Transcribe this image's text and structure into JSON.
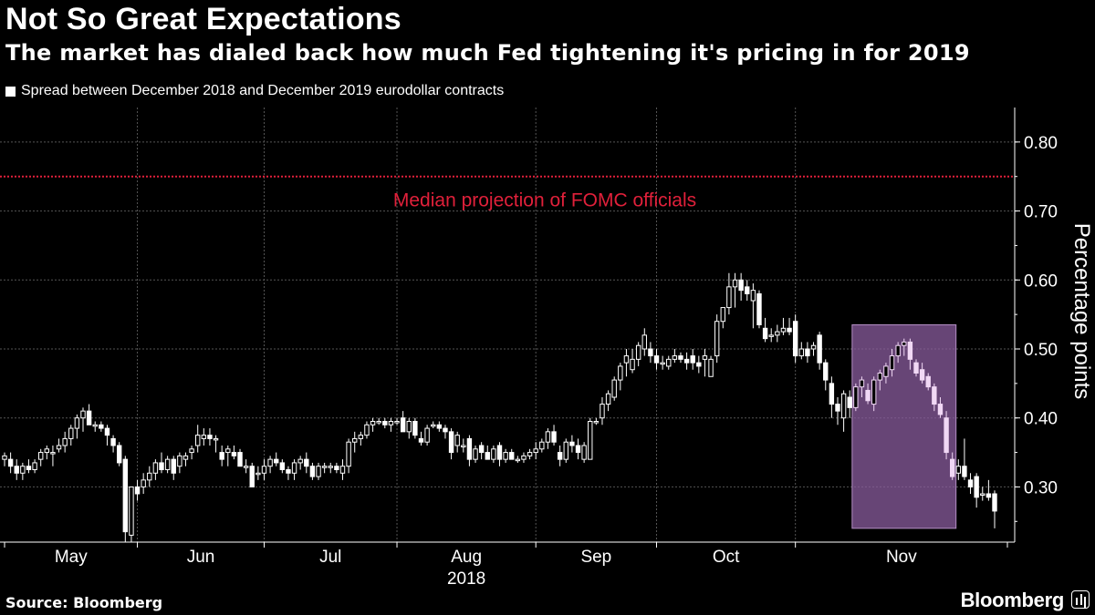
{
  "title": "Not So Great Expectations",
  "subtitle": "The market has dialed back how much Fed tightening it's pricing in for 2019",
  "legend_label": "Spread between December 2018 and December 2019 eurodollar contracts",
  "source": "Source: Bloomberg",
  "brand": "Bloomberg",
  "colors": {
    "background": "#000000",
    "candle": "#ffffff",
    "reference_line": "#e0203a",
    "highlight": "#8a5c9e",
    "highlight_candle": "#f1d8f5"
  },
  "chart_data": {
    "type": "candlestick",
    "title": "Not So Great Expectations",
    "ylabel": "Percentage points",
    "ylim": [
      0.22,
      0.85
    ],
    "yticks": [
      0.3,
      0.4,
      0.5,
      0.6,
      0.7,
      0.8
    ],
    "ytick_labels": [
      "0.30",
      "0.40",
      "0.50",
      "0.60",
      "0.70",
      "0.80"
    ],
    "xlim": [
      0,
      164
    ],
    "x_months": [
      {
        "label": "May",
        "day": 0
      },
      {
        "label": "Jun",
        "day": 22
      },
      {
        "label": "Jul",
        "day": 43
      },
      {
        "label": "Aug",
        "day": 65
      },
      {
        "label": "Sep",
        "day": 88
      },
      {
        "label": "Oct",
        "day": 108
      },
      {
        "label": "Nov",
        "day": 131
      }
    ],
    "x_year_label": "2018",
    "reference_line": {
      "value": 0.75,
      "label": "Median projection of FOMC officials"
    },
    "highlight": {
      "x_start": 141,
      "x_end": 157,
      "y_low": 0.24,
      "y_high": 0.535
    },
    "candles": [
      {
        "o": 0.34,
        "h": 0.35,
        "l": 0.33,
        "c": 0.345
      },
      {
        "o": 0.34,
        "h": 0.35,
        "l": 0.32,
        "c": 0.33
      },
      {
        "o": 0.33,
        "h": 0.34,
        "l": 0.31,
        "c": 0.32
      },
      {
        "o": 0.32,
        "h": 0.335,
        "l": 0.31,
        "c": 0.33
      },
      {
        "o": 0.33,
        "h": 0.34,
        "l": 0.32,
        "c": 0.325
      },
      {
        "o": 0.325,
        "h": 0.34,
        "l": 0.32,
        "c": 0.335
      },
      {
        "o": 0.34,
        "h": 0.355,
        "l": 0.33,
        "c": 0.35
      },
      {
        "o": 0.35,
        "h": 0.36,
        "l": 0.34,
        "c": 0.355
      },
      {
        "o": 0.35,
        "h": 0.36,
        "l": 0.33,
        "c": 0.35
      },
      {
        "o": 0.355,
        "h": 0.37,
        "l": 0.35,
        "c": 0.36
      },
      {
        "o": 0.36,
        "h": 0.38,
        "l": 0.35,
        "c": 0.37
      },
      {
        "o": 0.37,
        "h": 0.39,
        "l": 0.36,
        "c": 0.385
      },
      {
        "o": 0.385,
        "h": 0.405,
        "l": 0.37,
        "c": 0.4
      },
      {
        "o": 0.4,
        "h": 0.415,
        "l": 0.38,
        "c": 0.41
      },
      {
        "o": 0.41,
        "h": 0.42,
        "l": 0.39,
        "c": 0.39
      },
      {
        "o": 0.39,
        "h": 0.395,
        "l": 0.38,
        "c": 0.39
      },
      {
        "o": 0.39,
        "h": 0.395,
        "l": 0.38,
        "c": 0.385
      },
      {
        "o": 0.385,
        "h": 0.39,
        "l": 0.36,
        "c": 0.375
      },
      {
        "o": 0.37,
        "h": 0.375,
        "l": 0.35,
        "c": 0.36
      },
      {
        "o": 0.36,
        "h": 0.365,
        "l": 0.33,
        "c": 0.335
      },
      {
        "o": 0.34,
        "h": 0.345,
        "l": 0.22,
        "c": 0.235
      },
      {
        "o": 0.23,
        "h": 0.3,
        "l": 0.22,
        "c": 0.3
      },
      {
        "o": 0.3,
        "h": 0.31,
        "l": 0.28,
        "c": 0.29
      },
      {
        "o": 0.3,
        "h": 0.32,
        "l": 0.29,
        "c": 0.31
      },
      {
        "o": 0.31,
        "h": 0.33,
        "l": 0.3,
        "c": 0.32
      },
      {
        "o": 0.32,
        "h": 0.34,
        "l": 0.31,
        "c": 0.335
      },
      {
        "o": 0.335,
        "h": 0.35,
        "l": 0.32,
        "c": 0.325
      },
      {
        "o": 0.325,
        "h": 0.345,
        "l": 0.32,
        "c": 0.34
      },
      {
        "o": 0.34,
        "h": 0.345,
        "l": 0.31,
        "c": 0.32
      },
      {
        "o": 0.33,
        "h": 0.35,
        "l": 0.32,
        "c": 0.345
      },
      {
        "o": 0.34,
        "h": 0.35,
        "l": 0.33,
        "c": 0.345
      },
      {
        "o": 0.35,
        "h": 0.36,
        "l": 0.34,
        "c": 0.355
      },
      {
        "o": 0.36,
        "h": 0.39,
        "l": 0.35,
        "c": 0.375
      },
      {
        "o": 0.37,
        "h": 0.385,
        "l": 0.36,
        "c": 0.375
      },
      {
        "o": 0.375,
        "h": 0.385,
        "l": 0.36,
        "c": 0.37
      },
      {
        "o": 0.37,
        "h": 0.375,
        "l": 0.35,
        "c": 0.37
      },
      {
        "o": 0.35,
        "h": 0.36,
        "l": 0.33,
        "c": 0.34
      },
      {
        "o": 0.35,
        "h": 0.36,
        "l": 0.33,
        "c": 0.355
      },
      {
        "o": 0.35,
        "h": 0.36,
        "l": 0.34,
        "c": 0.345
      },
      {
        "o": 0.35,
        "h": 0.355,
        "l": 0.33,
        "c": 0.33
      },
      {
        "o": 0.33,
        "h": 0.34,
        "l": 0.32,
        "c": 0.33
      },
      {
        "o": 0.33,
        "h": 0.335,
        "l": 0.3,
        "c": 0.3
      },
      {
        "o": 0.32,
        "h": 0.33,
        "l": 0.31,
        "c": 0.32
      },
      {
        "o": 0.32,
        "h": 0.34,
        "l": 0.31,
        "c": 0.33
      },
      {
        "o": 0.33,
        "h": 0.345,
        "l": 0.32,
        "c": 0.34
      },
      {
        "o": 0.34,
        "h": 0.35,
        "l": 0.33,
        "c": 0.335
      },
      {
        "o": 0.335,
        "h": 0.34,
        "l": 0.32,
        "c": 0.325
      },
      {
        "o": 0.325,
        "h": 0.33,
        "l": 0.31,
        "c": 0.32
      },
      {
        "o": 0.32,
        "h": 0.34,
        "l": 0.31,
        "c": 0.335
      },
      {
        "o": 0.335,
        "h": 0.345,
        "l": 0.325,
        "c": 0.34
      },
      {
        "o": 0.34,
        "h": 0.35,
        "l": 0.32,
        "c": 0.33
      },
      {
        "o": 0.33,
        "h": 0.335,
        "l": 0.31,
        "c": 0.315
      },
      {
        "o": 0.315,
        "h": 0.335,
        "l": 0.31,
        "c": 0.33
      },
      {
        "o": 0.33,
        "h": 0.335,
        "l": 0.32,
        "c": 0.33
      },
      {
        "o": 0.33,
        "h": 0.335,
        "l": 0.32,
        "c": 0.33
      },
      {
        "o": 0.33,
        "h": 0.335,
        "l": 0.32,
        "c": 0.325
      },
      {
        "o": 0.32,
        "h": 0.34,
        "l": 0.31,
        "c": 0.33
      },
      {
        "o": 0.33,
        "h": 0.37,
        "l": 0.32,
        "c": 0.365
      },
      {
        "o": 0.365,
        "h": 0.38,
        "l": 0.35,
        "c": 0.37
      },
      {
        "o": 0.37,
        "h": 0.38,
        "l": 0.36,
        "c": 0.375
      },
      {
        "o": 0.375,
        "h": 0.395,
        "l": 0.37,
        "c": 0.39
      },
      {
        "o": 0.39,
        "h": 0.4,
        "l": 0.38,
        "c": 0.395
      },
      {
        "o": 0.395,
        "h": 0.4,
        "l": 0.39,
        "c": 0.395
      },
      {
        "o": 0.395,
        "h": 0.4,
        "l": 0.385,
        "c": 0.39
      },
      {
        "o": 0.39,
        "h": 0.4,
        "l": 0.38,
        "c": 0.395
      },
      {
        "o": 0.395,
        "h": 0.4,
        "l": 0.39,
        "c": 0.395
      },
      {
        "o": 0.4,
        "h": 0.41,
        "l": 0.38,
        "c": 0.38
      },
      {
        "o": 0.38,
        "h": 0.4,
        "l": 0.37,
        "c": 0.395
      },
      {
        "o": 0.395,
        "h": 0.4,
        "l": 0.37,
        "c": 0.375
      },
      {
        "o": 0.37,
        "h": 0.38,
        "l": 0.36,
        "c": 0.365
      },
      {
        "o": 0.365,
        "h": 0.39,
        "l": 0.36,
        "c": 0.385
      },
      {
        "o": 0.39,
        "h": 0.395,
        "l": 0.385,
        "c": 0.39
      },
      {
        "o": 0.39,
        "h": 0.395,
        "l": 0.38,
        "c": 0.385
      },
      {
        "o": 0.385,
        "h": 0.39,
        "l": 0.37,
        "c": 0.38
      },
      {
        "o": 0.38,
        "h": 0.385,
        "l": 0.34,
        "c": 0.35
      },
      {
        "o": 0.36,
        "h": 0.38,
        "l": 0.35,
        "c": 0.375
      },
      {
        "o": 0.36,
        "h": 0.37,
        "l": 0.35,
        "c": 0.36
      },
      {
        "o": 0.37,
        "h": 0.375,
        "l": 0.33,
        "c": 0.34
      },
      {
        "o": 0.34,
        "h": 0.36,
        "l": 0.335,
        "c": 0.355
      },
      {
        "o": 0.36,
        "h": 0.365,
        "l": 0.34,
        "c": 0.35
      },
      {
        "o": 0.35,
        "h": 0.36,
        "l": 0.34,
        "c": 0.34
      },
      {
        "o": 0.34,
        "h": 0.36,
        "l": 0.335,
        "c": 0.355
      },
      {
        "o": 0.36,
        "h": 0.365,
        "l": 0.33,
        "c": 0.34
      },
      {
        "o": 0.34,
        "h": 0.355,
        "l": 0.335,
        "c": 0.35
      },
      {
        "o": 0.35,
        "h": 0.355,
        "l": 0.34,
        "c": 0.34
      },
      {
        "o": 0.34,
        "h": 0.345,
        "l": 0.335,
        "c": 0.34
      },
      {
        "o": 0.34,
        "h": 0.35,
        "l": 0.335,
        "c": 0.345
      },
      {
        "o": 0.345,
        "h": 0.355,
        "l": 0.34,
        "c": 0.35
      },
      {
        "o": 0.35,
        "h": 0.365,
        "l": 0.34,
        "c": 0.355
      },
      {
        "o": 0.355,
        "h": 0.37,
        "l": 0.35,
        "c": 0.365
      },
      {
        "o": 0.365,
        "h": 0.385,
        "l": 0.355,
        "c": 0.38
      },
      {
        "o": 0.38,
        "h": 0.39,
        "l": 0.36,
        "c": 0.365
      },
      {
        "o": 0.35,
        "h": 0.36,
        "l": 0.33,
        "c": 0.34
      },
      {
        "o": 0.34,
        "h": 0.37,
        "l": 0.335,
        "c": 0.365
      },
      {
        "o": 0.365,
        "h": 0.375,
        "l": 0.35,
        "c": 0.36
      },
      {
        "o": 0.36,
        "h": 0.37,
        "l": 0.34,
        "c": 0.35
      },
      {
        "o": 0.34,
        "h": 0.365,
        "l": 0.335,
        "c": 0.36
      },
      {
        "o": 0.34,
        "h": 0.4,
        "l": 0.34,
        "c": 0.395
      },
      {
        "o": 0.395,
        "h": 0.4,
        "l": 0.39,
        "c": 0.395
      },
      {
        "o": 0.4,
        "h": 0.43,
        "l": 0.39,
        "c": 0.42
      },
      {
        "o": 0.42,
        "h": 0.44,
        "l": 0.41,
        "c": 0.435
      },
      {
        "o": 0.43,
        "h": 0.46,
        "l": 0.425,
        "c": 0.455
      },
      {
        "o": 0.455,
        "h": 0.48,
        "l": 0.44,
        "c": 0.475
      },
      {
        "o": 0.48,
        "h": 0.5,
        "l": 0.46,
        "c": 0.49
      },
      {
        "o": 0.47,
        "h": 0.5,
        "l": 0.465,
        "c": 0.485
      },
      {
        "o": 0.485,
        "h": 0.51,
        "l": 0.475,
        "c": 0.505
      },
      {
        "o": 0.5,
        "h": 0.53,
        "l": 0.49,
        "c": 0.52
      },
      {
        "o": 0.5,
        "h": 0.51,
        "l": 0.48,
        "c": 0.49
      },
      {
        "o": 0.49,
        "h": 0.5,
        "l": 0.47,
        "c": 0.48
      },
      {
        "o": 0.48,
        "h": 0.49,
        "l": 0.47,
        "c": 0.48
      },
      {
        "o": 0.475,
        "h": 0.49,
        "l": 0.47,
        "c": 0.485
      },
      {
        "o": 0.485,
        "h": 0.5,
        "l": 0.48,
        "c": 0.49
      },
      {
        "o": 0.49,
        "h": 0.495,
        "l": 0.48,
        "c": 0.485
      },
      {
        "o": 0.485,
        "h": 0.495,
        "l": 0.47,
        "c": 0.48
      },
      {
        "o": 0.49,
        "h": 0.5,
        "l": 0.47,
        "c": 0.48
      },
      {
        "o": 0.48,
        "h": 0.49,
        "l": 0.465,
        "c": 0.475
      },
      {
        "o": 0.485,
        "h": 0.5,
        "l": 0.46,
        "c": 0.49
      },
      {
        "o": 0.46,
        "h": 0.49,
        "l": 0.46,
        "c": 0.485
      },
      {
        "o": 0.49,
        "h": 0.55,
        "l": 0.48,
        "c": 0.54
      },
      {
        "o": 0.54,
        "h": 0.56,
        "l": 0.53,
        "c": 0.56
      },
      {
        "o": 0.56,
        "h": 0.61,
        "l": 0.55,
        "c": 0.59
      },
      {
        "o": 0.59,
        "h": 0.61,
        "l": 0.56,
        "c": 0.6
      },
      {
        "o": 0.6,
        "h": 0.61,
        "l": 0.57,
        "c": 0.585
      },
      {
        "o": 0.59,
        "h": 0.6,
        "l": 0.57,
        "c": 0.58
      },
      {
        "o": 0.57,
        "h": 0.595,
        "l": 0.53,
        "c": 0.585
      },
      {
        "o": 0.58,
        "h": 0.585,
        "l": 0.53,
        "c": 0.535
      },
      {
        "o": 0.53,
        "h": 0.545,
        "l": 0.51,
        "c": 0.515
      },
      {
        "o": 0.52,
        "h": 0.53,
        "l": 0.51,
        "c": 0.52
      },
      {
        "o": 0.52,
        "h": 0.535,
        "l": 0.51,
        "c": 0.525
      },
      {
        "o": 0.525,
        "h": 0.545,
        "l": 0.52,
        "c": 0.53
      },
      {
        "o": 0.53,
        "h": 0.545,
        "l": 0.52,
        "c": 0.525
      },
      {
        "o": 0.54,
        "h": 0.55,
        "l": 0.48,
        "c": 0.49
      },
      {
        "o": 0.49,
        "h": 0.51,
        "l": 0.485,
        "c": 0.5
      },
      {
        "o": 0.5,
        "h": 0.51,
        "l": 0.48,
        "c": 0.49
      },
      {
        "o": 0.5,
        "h": 0.51,
        "l": 0.49,
        "c": 0.505
      },
      {
        "o": 0.52,
        "h": 0.525,
        "l": 0.47,
        "c": 0.48
      },
      {
        "o": 0.48,
        "h": 0.485,
        "l": 0.44,
        "c": 0.455
      },
      {
        "o": 0.45,
        "h": 0.46,
        "l": 0.4,
        "c": 0.42
      },
      {
        "o": 0.42,
        "h": 0.43,
        "l": 0.39,
        "c": 0.41
      },
      {
        "o": 0.4,
        "h": 0.44,
        "l": 0.38,
        "c": 0.435
      },
      {
        "o": 0.43,
        "h": 0.44,
        "l": 0.4,
        "c": 0.415
      },
      {
        "o": 0.415,
        "h": 0.45,
        "l": 0.41,
        "c": 0.445
      },
      {
        "o": 0.445,
        "h": 0.46,
        "l": 0.43,
        "c": 0.455
      },
      {
        "o": 0.44,
        "h": 0.45,
        "l": 0.42,
        "c": 0.425
      },
      {
        "o": 0.42,
        "h": 0.46,
        "l": 0.41,
        "c": 0.455
      },
      {
        "o": 0.455,
        "h": 0.47,
        "l": 0.44,
        "c": 0.465
      },
      {
        "o": 0.46,
        "h": 0.48,
        "l": 0.45,
        "c": 0.475
      },
      {
        "o": 0.47,
        "h": 0.5,
        "l": 0.46,
        "c": 0.49
      },
      {
        "o": 0.49,
        "h": 0.51,
        "l": 0.48,
        "c": 0.505
      },
      {
        "o": 0.505,
        "h": 0.515,
        "l": 0.49,
        "c": 0.51
      },
      {
        "o": 0.51,
        "h": 0.515,
        "l": 0.47,
        "c": 0.485
      },
      {
        "o": 0.48,
        "h": 0.485,
        "l": 0.46,
        "c": 0.465
      },
      {
        "o": 0.47,
        "h": 0.48,
        "l": 0.45,
        "c": 0.455
      },
      {
        "o": 0.46,
        "h": 0.465,
        "l": 0.44,
        "c": 0.445
      },
      {
        "o": 0.445,
        "h": 0.45,
        "l": 0.41,
        "c": 0.42
      },
      {
        "o": 0.42,
        "h": 0.43,
        "l": 0.4,
        "c": 0.405
      },
      {
        "o": 0.4,
        "h": 0.41,
        "l": 0.34,
        "c": 0.35
      },
      {
        "o": 0.34,
        "h": 0.35,
        "l": 0.31,
        "c": 0.315
      },
      {
        "o": 0.32,
        "h": 0.34,
        "l": 0.31,
        "c": 0.33
      },
      {
        "o": 0.33,
        "h": 0.37,
        "l": 0.31,
        "c": 0.315
      },
      {
        "o": 0.31,
        "h": 0.32,
        "l": 0.29,
        "c": 0.3
      },
      {
        "o": 0.315,
        "h": 0.32,
        "l": 0.27,
        "c": 0.285
      },
      {
        "o": 0.29,
        "h": 0.3,
        "l": 0.28,
        "c": 0.29
      },
      {
        "o": 0.29,
        "h": 0.31,
        "l": 0.28,
        "c": 0.285
      },
      {
        "o": 0.29,
        "h": 0.295,
        "l": 0.24,
        "c": 0.265
      }
    ]
  }
}
